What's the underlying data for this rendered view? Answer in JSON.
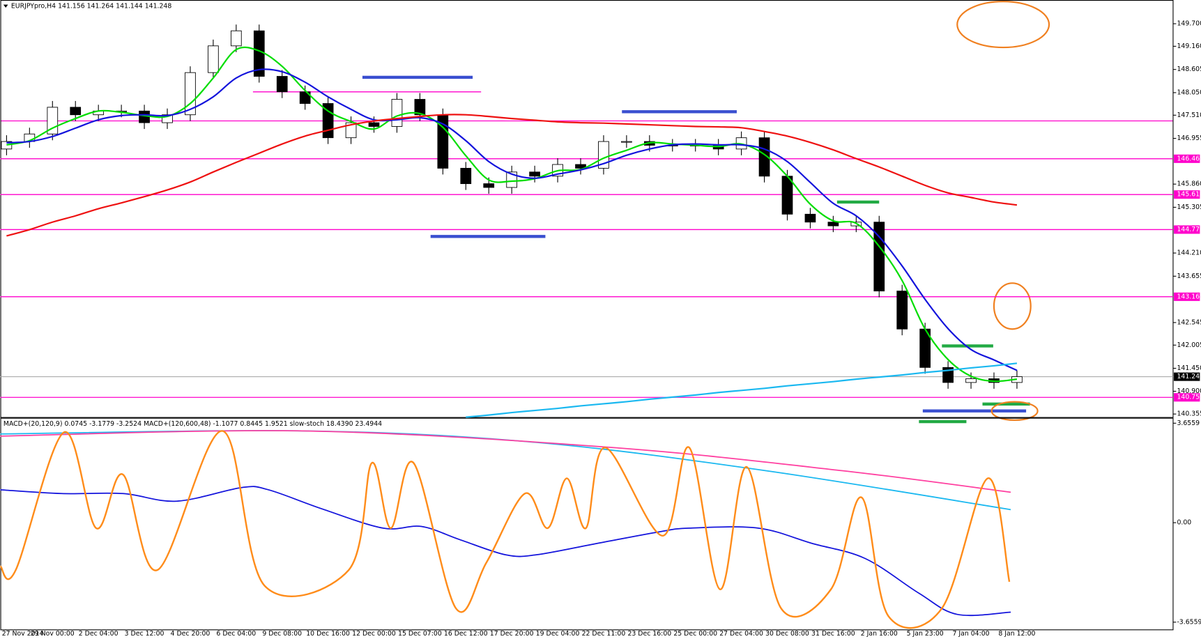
{
  "chart_data": [
    {
      "type": "candlestick",
      "title": "EURJPYpro,H4  141.156 141.264 141.144 141.248",
      "categories": [
        "27 Nov 2014",
        null,
        "29 Nov 00:00",
        null,
        "2 Dec 04:00",
        null,
        "3 Dec 12:00",
        null,
        "4 Dec 20:00",
        null,
        "6 Dec 04:00",
        null,
        "9 Dec 08:00",
        null,
        "10 Dec 16:00",
        null,
        "12 Dec 00:00",
        null,
        "15 Dec 07:00",
        null,
        "16 Dec 12:00",
        null,
        "17 Dec 20:00",
        null,
        "19 Dec 04:00",
        null,
        "22 Dec 11:00",
        null,
        "23 Dec 16:00",
        null,
        "25 Dec 00:00",
        null,
        "27 Dec 04:00",
        null,
        "30 Dec 08:00",
        null,
        "31 Dec 16:00",
        null,
        "2 Jan 16:00",
        null,
        "5 Jan 23:00",
        null,
        "7 Jan 04:00",
        null,
        "8 Jan 12:00"
      ],
      "open": [
        146.7,
        146.88,
        147.06,
        147.7,
        147.52,
        147.61,
        147.61,
        147.33,
        147.52,
        148.53,
        149.17,
        149.53,
        148.44,
        148.07,
        147.79,
        146.97,
        147.33,
        147.24,
        147.89,
        147.52,
        146.24,
        145.87,
        145.78,
        146.15,
        146.05,
        146.33,
        146.24,
        146.88,
        146.88,
        146.79,
        146.79,
        146.79,
        146.7,
        146.97,
        146.05,
        145.14,
        144.95,
        144.86,
        144.95,
        143.3,
        142.39,
        141.47,
        141.11,
        141.2,
        141.11
      ],
      "high": [
        147.03,
        147.21,
        147.85,
        147.85,
        147.76,
        147.76,
        147.76,
        147.67,
        148.68,
        149.32,
        149.68,
        149.68,
        148.59,
        148.22,
        147.94,
        147.48,
        147.48,
        148.04,
        148.04,
        147.67,
        146.39,
        146.02,
        146.3,
        146.3,
        146.48,
        146.48,
        147.03,
        147.03,
        147.03,
        146.94,
        146.94,
        146.94,
        147.12,
        147.12,
        146.2,
        145.29,
        145.1,
        145.1,
        145.1,
        143.45,
        142.54,
        141.62,
        141.35,
        141.35,
        141.4
      ],
      "low": [
        146.55,
        146.73,
        146.91,
        147.37,
        147.37,
        147.46,
        147.18,
        147.18,
        147.37,
        148.38,
        149.02,
        148.29,
        147.92,
        147.64,
        146.82,
        146.82,
        147.09,
        147.09,
        147.37,
        146.09,
        145.72,
        145.63,
        145.63,
        145.9,
        145.9,
        146.09,
        146.09,
        146.73,
        146.64,
        146.64,
        146.64,
        146.55,
        146.55,
        145.9,
        144.99,
        144.8,
        144.71,
        144.71,
        143.15,
        142.24,
        141.32,
        140.96,
        140.96,
        140.96,
        140.96
      ],
      "close": [
        146.88,
        147.06,
        147.7,
        147.52,
        147.61,
        147.61,
        147.33,
        147.52,
        148.53,
        149.17,
        149.53,
        148.44,
        148.07,
        147.79,
        146.97,
        147.33,
        147.24,
        147.89,
        147.52,
        146.24,
        145.87,
        145.78,
        146.15,
        146.05,
        146.33,
        146.24,
        146.88,
        146.88,
        146.79,
        146.79,
        146.79,
        146.7,
        146.97,
        146.05,
        145.14,
        144.95,
        144.86,
        144.95,
        143.3,
        142.39,
        141.47,
        141.11,
        141.2,
        141.11,
        141.25
      ],
      "up_color": "#ffffff",
      "down_color": "#000000",
      "xlim": [
        -0.27,
        50.8
      ],
      "ylim": [
        140.282,
        150.268
      ],
      "yticks": [
        {
          "value": 149.7,
          "label": "149.700"
        },
        {
          "value": 149.16,
          "label": "149.160"
        },
        148.605,
        {
          "value": 148.05,
          "label": "148.050"
        },
        {
          "value": 147.51,
          "label": "147.510"
        },
        146.955,
        {
          "value": 145.86,
          "label": "145.860"
        },
        145.305,
        {
          "value": 144.21,
          "label": "144.210"
        },
        143.655,
        142.545,
        142.005,
        {
          "value": 141.45,
          "label": "141.450"
        },
        {
          "value": 140.9,
          "label": "140.900"
        },
        140.355
      ],
      "series": [
        {
          "color": "#00dd00",
          "values": [
            146.8,
            146.9,
            147.2,
            147.43,
            147.61,
            147.58,
            147.5,
            147.48,
            147.79,
            148.4,
            149.08,
            149.05,
            148.68,
            148.1,
            147.61,
            147.36,
            147.18,
            147.49,
            147.55,
            147.22,
            146.54,
            145.96,
            145.93,
            145.99,
            146.18,
            146.21,
            146.48,
            146.67,
            146.85,
            146.82,
            146.79,
            146.76,
            146.82,
            146.57,
            146.05,
            145.38,
            144.98,
            144.92,
            144.37,
            143.55,
            142.39,
            141.66,
            141.26,
            141.14,
            141.19
          ]
        },
        {
          "color": "#1414dc",
          "values": [
            146.85,
            146.88,
            147.0,
            147.2,
            147.4,
            147.5,
            147.52,
            147.5,
            147.65,
            147.95,
            148.4,
            148.6,
            148.55,
            148.3,
            147.95,
            147.65,
            147.4,
            147.4,
            147.45,
            147.3,
            146.9,
            146.4,
            146.1,
            146.0,
            146.1,
            146.2,
            146.35,
            146.55,
            146.7,
            146.8,
            146.82,
            146.8,
            146.8,
            146.7,
            146.4,
            145.9,
            145.4,
            145.1,
            144.6,
            143.9,
            143.1,
            142.4,
            141.9,
            141.65,
            141.4
          ]
        },
        {
          "color": "#ee1111",
          "values": [
            144.62,
            144.77,
            144.95,
            145.1,
            145.27,
            145.41,
            145.56,
            145.72,
            145.91,
            146.15,
            146.38,
            146.6,
            146.82,
            147.01,
            147.15,
            147.28,
            147.37,
            147.43,
            147.48,
            147.52,
            147.52,
            147.48,
            147.43,
            147.39,
            147.35,
            147.33,
            147.32,
            147.3,
            147.28,
            147.26,
            147.24,
            147.23,
            147.21,
            147.12,
            147.01,
            146.86,
            146.68,
            146.47,
            146.27,
            146.05,
            145.83,
            145.65,
            145.54,
            145.43,
            145.36
          ]
        },
        {
          "color": "#1ab8f0",
          "values": [
            null,
            null,
            null,
            null,
            null,
            null,
            null,
            null,
            null,
            null,
            null,
            null,
            null,
            null,
            null,
            null,
            null,
            null,
            null,
            null,
            140.28,
            140.33,
            140.39,
            140.44,
            140.49,
            140.55,
            140.6,
            140.65,
            140.71,
            140.76,
            140.81,
            140.87,
            140.92,
            140.97,
            141.03,
            141.08,
            141.13,
            141.19,
            141.24,
            141.29,
            141.35,
            141.4,
            141.46,
            141.51,
            141.57
          ]
        }
      ],
      "levels": [
        146.467,
        {
          "value": 145.61,
          "label": "145.610"
        },
        144.771,
        143.163,
        140.754
      ],
      "level_color": "#ff00cc",
      "price": 141.248
    },
    {
      "type": "line",
      "title": "MACD+(20,120,9) 0.0745 -3.1779 -3.2524  MACD+(120,600,48) -1.1077 0.8445 1.9521  slow-stoch 18.4390 23.4944",
      "xlim": [
        -0.27,
        50.8
      ],
      "ylim": [
        -3.937,
        3.853
      ],
      "yticks": [
        3.6559,
        {
          "value": 0,
          "label": "0.00"
        },
        -3.6559
      ],
      "series": [
        {
          "color": "#1ab8f0",
          "x": [
            -0.27,
            13.07,
            23.07,
            33.07,
            43.73
          ],
          "values": [
            3.26,
            3.37,
            2.95,
            1.91,
            0.48
          ]
        },
        {
          "color": "#ff3fa0",
          "x": [
            -0.27,
            13.07,
            26.4,
            36.4,
            43.73
          ],
          "values": [
            3.18,
            3.37,
            2.76,
            1.91,
            1.12
          ]
        },
        {
          "color": "#1414dc",
          "x": [
            -0.27,
            2.4,
            5.07,
            7.4,
            10.23,
            11.4,
            13.73,
            16.4,
            18.07,
            19.73,
            21.73,
            23.07,
            25.73,
            28.4,
            29.73,
            32.73,
            35.07,
            37.4,
            39.73,
            41.4,
            43.73
          ],
          "values": [
            1.21,
            1.07,
            1.07,
            0.79,
            1.29,
            1.21,
            0.51,
            -0.2,
            -0.14,
            -0.62,
            -1.18,
            -1.18,
            -0.76,
            -0.34,
            -0.2,
            -0.2,
            -0.76,
            -1.32,
            -2.59,
            -3.37,
            -3.29
          ]
        },
        {
          "color": "#ff8c1a",
          "x": [
            -0.27,
            0.4,
            2.5,
            3.9,
            5.07,
            6.57,
            9.4,
            11.23,
            14.9,
            15.9,
            16.73,
            17.73,
            19.57,
            20.9,
            22.57,
            23.57,
            24.4,
            25.23,
            26.07,
            28.57,
            29.73,
            31.07,
            32.23,
            33.73,
            35.9,
            37.23,
            38.4,
            40.73,
            42.73,
            43.67
          ],
          "values": [
            -1.6,
            -1.74,
            3.32,
            -0.2,
            1.77,
            -1.74,
            3.37,
            -2.31,
            -1.74,
            2.19,
            -0.2,
            2.19,
            -3.15,
            -1.46,
            1.07,
            -0.2,
            1.63,
            -0.2,
            2.76,
            -0.48,
            2.76,
            -2.45,
            2.05,
            -3.15,
            -2.45,
            0.93,
            -3.43,
            -3.15,
            1.63,
            -2.17
          ]
        }
      ]
    }
  ]
}
